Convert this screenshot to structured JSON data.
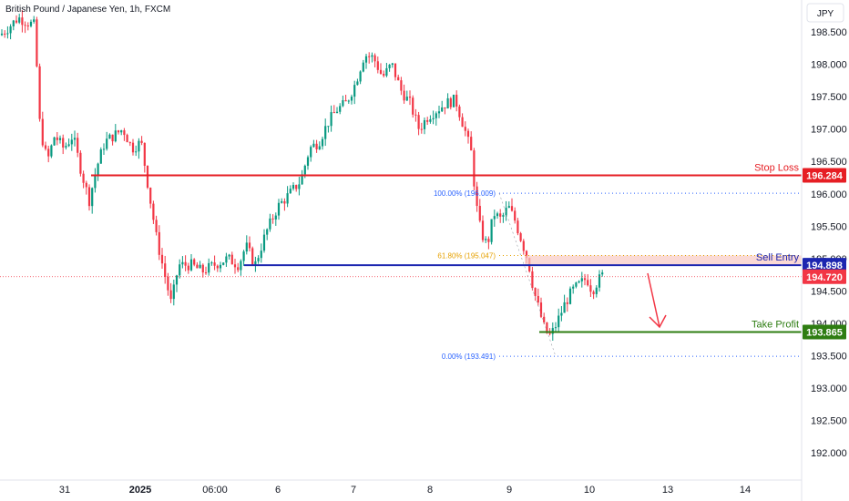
{
  "header": {
    "symbol_title": "British Pound / Japanese Yen, 1h, FXCM"
  },
  "currency_button": {
    "label": "JPY"
  },
  "chart_data": {
    "type": "candlestick",
    "title": "British Pound / Japanese Yen, 1h, FXCM",
    "y_axis": {
      "unit": "JPY",
      "ylim": [
        191.6,
        198.85
      ],
      "ticks": [
        "198.500",
        "198.000",
        "197.500",
        "197.000",
        "196.500",
        "196.000",
        "195.500",
        "195.000",
        "194.500",
        "194.000",
        "193.500",
        "193.000",
        "192.500",
        "192.000"
      ]
    },
    "x_axis": {
      "tick_labels": [
        "31",
        "2025",
        "06:00",
        "6",
        "7",
        "8",
        "9",
        "10",
        "13",
        "14"
      ]
    },
    "grid": false,
    "levels": {
      "stop_loss": {
        "label": "Stop Loss",
        "value": 196.284,
        "price_label": "196.284",
        "color": "#e61e24"
      },
      "sell_entry": {
        "label": "Sell Entry",
        "value": 194.898,
        "price_label": "194.898",
        "color": "#1c26b0"
      },
      "take_profit": {
        "label": "Take Profit",
        "value": 193.865,
        "price_label": "193.865",
        "color": "#2e7d12"
      },
      "current_price": {
        "value": 194.72,
        "price_label": "194.720",
        "color": "#f23645"
      }
    },
    "fibonacci": {
      "levels": [
        {
          "label": "100.00% (196.009)",
          "value": 196.009,
          "color": "#2962ff"
        },
        {
          "label": "61.80% (195.047)",
          "value": 195.047,
          "color": "#e6a100"
        },
        {
          "label": "0.00% (193.491)",
          "value": 193.491,
          "color": "#2962ff"
        }
      ]
    },
    "path": [
      [
        0,
        198.45
      ],
      [
        8,
        198.55
      ],
      [
        20,
        198.72
      ],
      [
        30,
        198.65
      ],
      [
        38,
        198.6
      ],
      [
        44,
        197.0
      ],
      [
        52,
        196.5
      ],
      [
        60,
        196.9
      ],
      [
        70,
        196.7
      ],
      [
        80,
        196.9
      ],
      [
        90,
        196.3
      ],
      [
        98,
        195.9
      ],
      [
        106,
        196.4
      ],
      [
        115,
        196.8
      ],
      [
        125,
        196.9
      ],
      [
        135,
        197.0
      ],
      [
        145,
        196.7
      ],
      [
        155,
        196.8
      ],
      [
        165,
        195.9
      ],
      [
        172,
        195.3
      ],
      [
        180,
        194.8
      ],
      [
        188,
        194.3
      ],
      [
        196,
        194.9
      ],
      [
        210,
        194.9
      ],
      [
        222,
        194.8
      ],
      [
        235,
        194.9
      ],
      [
        250,
        195.0
      ],
      [
        262,
        194.9
      ],
      [
        270,
        195.2
      ],
      [
        280,
        194.9
      ],
      [
        292,
        195.4
      ],
      [
        305,
        195.8
      ],
      [
        318,
        196.0
      ],
      [
        330,
        196.2
      ],
      [
        340,
        196.7
      ],
      [
        350,
        196.8
      ],
      [
        360,
        197.1
      ],
      [
        370,
        197.3
      ],
      [
        380,
        197.4
      ],
      [
        390,
        197.7
      ],
      [
        400,
        198.15
      ],
      [
        410,
        198.1
      ],
      [
        420,
        197.8
      ],
      [
        430,
        198.0
      ],
      [
        440,
        197.6
      ],
      [
        450,
        197.4
      ],
      [
        460,
        197.0
      ],
      [
        470,
        197.2
      ],
      [
        480,
        197.3
      ],
      [
        490,
        197.4
      ],
      [
        500,
        197.45
      ],
      [
        510,
        197.0
      ],
      [
        518,
        196.6
      ],
      [
        522,
        195.9
      ],
      [
        528,
        195.4
      ],
      [
        535,
        195.2
      ],
      [
        542,
        195.7
      ],
      [
        550,
        195.6
      ],
      [
        558,
        195.8
      ],
      [
        565,
        195.6
      ],
      [
        572,
        195.3
      ],
      [
        580,
        194.95
      ],
      [
        586,
        194.5
      ],
      [
        592,
        194.2
      ],
      [
        598,
        193.9
      ],
      [
        603,
        193.8
      ],
      [
        608,
        193.9
      ],
      [
        614,
        194.1
      ],
      [
        620,
        194.3
      ],
      [
        628,
        194.5
      ],
      [
        636,
        194.6
      ],
      [
        644,
        194.7
      ],
      [
        650,
        194.5
      ],
      [
        656,
        194.65
      ],
      [
        662,
        194.75
      ]
    ]
  },
  "colors": {
    "bull": "#089981",
    "bear": "#f23645",
    "sell_zone": "#f8c9c3",
    "arrow": "#f23645"
  }
}
